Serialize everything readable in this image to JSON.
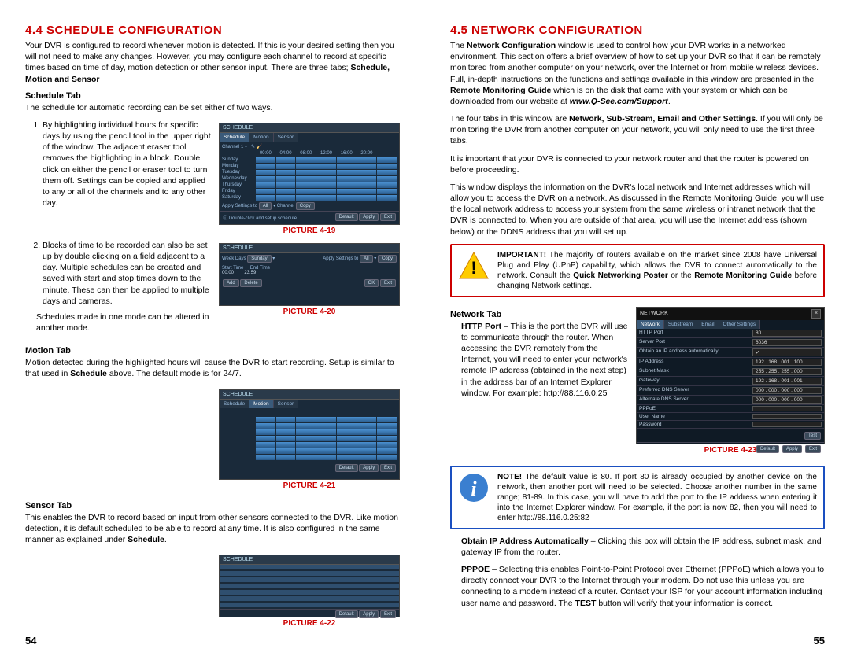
{
  "page_left_num": "54",
  "page_right_num": "55",
  "left": {
    "title": "4.4 SCHEDULE CONFIGURATION",
    "intro": "Your DVR is configured to record whenever motion is detected. If this is your desired setting then you will not need to make any changes. However, you may configure each channel to record at specific times based on time of day, motion detection or other sensor input. There are three tabs; ",
    "intro_bold": "Schedule, Motion and Sensor",
    "schedule_tab_head": "Schedule Tab",
    "schedule_tab_intro": "The schedule for automatic recording can be set either of two ways.",
    "item1": "By highlighting individual hours for specific days by using the pencil tool in the upper right of the window. The adjacent eraser tool removes the highlighting in a block. Double click on either the pencil or eraser tool to turn them off. Settings can be copied and applied to any or all of the channels and to any other day.",
    "item2": "Blocks of time to be recorded can also be set up by double clicking on a field adjacent to a day. Multiple schedules can be created and saved with start and stop times down to the minute. These can then be applied to multiple days and cameras.",
    "sched_note": "Schedules made in one mode can be altered in another mode.",
    "caption19": "PICTURE 4-19",
    "caption20": "PICTURE 4-20",
    "motion_head": "Motion Tab",
    "motion_text_a": "Motion detected during the highlighted hours will cause the DVR to start recording. Setup is similar to that used in ",
    "motion_bold": "Schedule",
    "motion_text_b": " above. The default mode is for 24/7.",
    "caption21": "PICTURE 4-21",
    "sensor_head": "Sensor Tab",
    "sensor_text_a": "This enables the DVR to record based on input from other sensors connected to the DVR. Like motion detection, it is default scheduled to be able to record at any time. It is also configured in the same manner as explained under ",
    "sensor_bold": "Schedule",
    "sensor_text_b": ".",
    "caption22": "PICTURE 4-22",
    "shot": {
      "title": "SCHEDULE",
      "tabs": [
        "Schedule",
        "Motion",
        "Sensor"
      ],
      "days": [
        "Sunday",
        "Monday",
        "Tuesday",
        "Wednesday",
        "Thursday",
        "Friday",
        "Saturday"
      ],
      "hours": [
        "00:00",
        "04:00",
        "08:00",
        "12:00",
        "16:00",
        "20:00"
      ],
      "apply_label": "Apply Settings to",
      "all": "All",
      "channel": "Channel",
      "copy": "Copy",
      "hint": "Double-click and setup schedule",
      "default": "Default",
      "apply": "Apply",
      "exit": "Exit",
      "add": "Add",
      "delete": "Delete",
      "week_day": "Week Days",
      "sunday": "Sunday",
      "start": "Start Time",
      "end": "End Time",
      "t0": "00:00",
      "t1": "23:59"
    }
  },
  "right": {
    "title": "4.5 NETWORK CONFIGURATION",
    "p1a": "The ",
    "p1b": "Network Configuration",
    "p1c": " window is used to control how your DVR works in a networked environment. This section offers a brief overview of how to set up your DVR so that it can be remotely monitored from another computer on your network, over the Internet or from mobile wireless devices. Full, in-depth instructions on the functions and settings available in this window are presented in the ",
    "p1d": "Remote Monitoring Guide",
    "p1e": " which is on the disk that came with your system or which can be downloaded from our website at ",
    "p1url": "www.Q-See.com/Support",
    "p1f": ".",
    "p2a": "The four tabs in this window are ",
    "p2b": "Network, Sub-Stream, Email and Other Settings",
    "p2c": ". If you will only be monitoring the DVR from another computer on your network, you will only need to use the first three tabs.",
    "p3": "It is important that your DVR is connected to your network router and that the router is powered on before proceeding.",
    "p4": "This window displays the information on the DVR's local network and Internet addresses which will allow you to access the DVR on a network. As discussed in the Remote Monitoring Guide, you will use the local network address to access your system from the same wireless or intranet network that the DVR is connected to. When you are outside of that area, you will use the Internet address (shown below) or the DDNS address that you will set up.",
    "warn_bold": "IMPORTANT!",
    "warn_a": " The majority of routers available on the market since 2008 have Universal Plug and Play (UPnP) capability, which allows the DVR to connect automatically to the network. Consult the ",
    "warn_b": "Quick Networking Poster",
    "warn_c": " or the ",
    "warn_d": "Remote Monitoring Guide",
    "warn_e": " before changing Network settings.",
    "network_tab_head": "Network Tab",
    "http_bold": "HTTP Port",
    "http_text": " – This is the port the DVR will use to communicate through the router. When accessing the DVR remotely from the Internet, you will need to enter your network's remote IP address (obtained in the next step) in the address bar of an Internet Explorer window. For example: http://88.116.0.25",
    "caption23": "PICTURE 4-23",
    "note_bold": "NOTE!",
    "note_text": " The default value is 80. If port 80 is already occupied by another device on the network, then another port will need to be selected. Choose another number in the same range; 81-89. In this case, you will have to add the port to the IP address when entering it into the Internet Explorer window. For example, if the port is now 82, then you will need to enter http://88.116.0.25:82",
    "obtain_bold": "Obtain IP Address Automatically",
    "obtain_text": " – Clicking this box will obtain the IP address, subnet mask, and gateway IP from the router.",
    "pppoe_bold": "PPPOE",
    "pppoe_text_a": " – Selecting this enables Point-to-Point Protocol over Ethernet (PPPoE) which allows you to directly connect your DVR to the Internet through your modem. Do not use this unless you are connecting to a modem instead of a router. Contact your ISP for your account information including user name and password. The ",
    "pppoe_bold2": "TEST",
    "pppoe_text_b": " button will verify that your information is correct.",
    "net": {
      "title": "NETWORK",
      "tabs": [
        "Network",
        "Substream",
        "Email",
        "Other Settings"
      ],
      "rows": [
        {
          "k": "HTTP Port",
          "v": "80"
        },
        {
          "k": "Server Port",
          "v": "6036"
        },
        {
          "k": "Obtain an IP address automatically",
          "v": "✓"
        },
        {
          "k": "IP Address",
          "v": "192 . 168 . 001 . 100"
        },
        {
          "k": "Subnet Mask",
          "v": "255 . 255 . 255 . 000"
        },
        {
          "k": "Gateway",
          "v": "192 . 168 . 001 . 001"
        },
        {
          "k": "Preferred DNS Server",
          "v": "000 . 000 . 000 . 000"
        },
        {
          "k": "Alternate DNS Server",
          "v": "000 . 000 . 000 . 000"
        },
        {
          "k": "PPPoE",
          "v": ""
        },
        {
          "k": "User Name",
          "v": ""
        },
        {
          "k": "Password",
          "v": ""
        }
      ],
      "test": "Test",
      "default": "Default",
      "apply": "Apply",
      "exit": "Exit"
    }
  }
}
